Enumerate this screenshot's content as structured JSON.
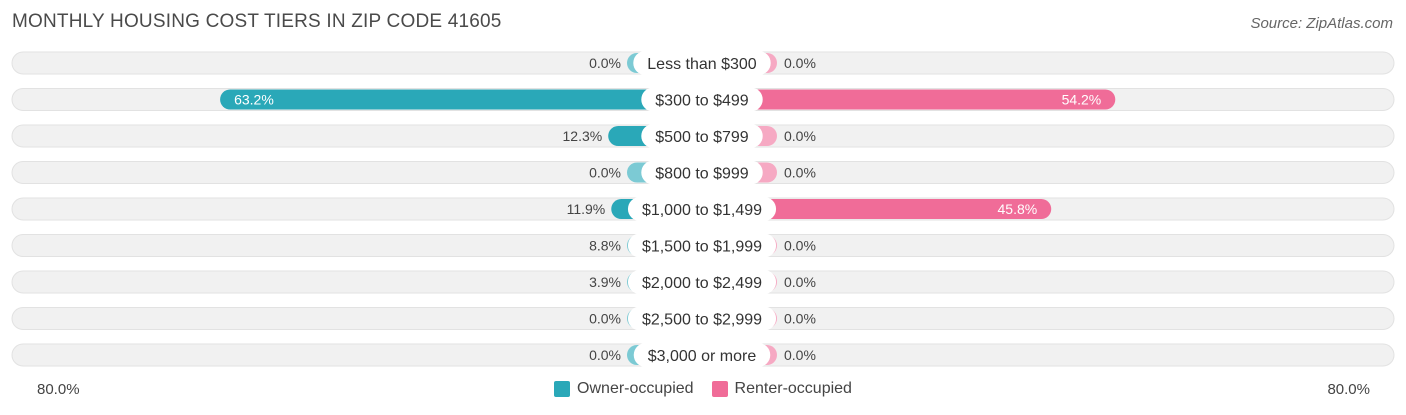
{
  "title": "MONTHLY HOUSING COST TIERS IN ZIP CODE 41605",
  "source": "Source: ZipAtlas.com",
  "axis": {
    "left_label": "80.0%",
    "right_label": "80.0%"
  },
  "legend": {
    "owner_label": "Owner-occupied",
    "renter_label": "Renter-occupied"
  },
  "colors": {
    "owner": "#2aa8b8",
    "owner_light": "#7ccad4",
    "renter": "#f06c98",
    "renter_light": "#f6a9c3",
    "row_bg": "#f1f1f1"
  },
  "chart_data": {
    "type": "bar",
    "orientation": "horizontal-diverging",
    "title": "MONTHLY HOUSING COST TIERS IN ZIP CODE 41605",
    "categories": [
      "Less than $300",
      "$300 to $499",
      "$500 to $799",
      "$800 to $999",
      "$1,000 to $1,499",
      "$1,500 to $1,999",
      "$2,000 to $2,499",
      "$2,500 to $2,999",
      "$3,000 or more"
    ],
    "series": [
      {
        "name": "Owner-occupied",
        "values": [
          0.0,
          63.2,
          12.3,
          0.0,
          11.9,
          8.8,
          3.9,
          0.0,
          0.0
        ]
      },
      {
        "name": "Renter-occupied",
        "values": [
          0.0,
          54.2,
          0.0,
          0.0,
          45.8,
          0.0,
          0.0,
          0.0,
          0.0
        ]
      }
    ],
    "value_labels_owner": [
      "0.0%",
      "63.2%",
      "12.3%",
      "0.0%",
      "11.9%",
      "8.8%",
      "3.9%",
      "0.0%",
      "0.0%"
    ],
    "value_labels_renter": [
      "0.0%",
      "54.2%",
      "0.0%",
      "0.0%",
      "45.8%",
      "0.0%",
      "0.0%",
      "0.0%",
      "0.0%"
    ],
    "xlim": [
      -80,
      80
    ],
    "legend_position": "bottom-center",
    "grid": false
  }
}
